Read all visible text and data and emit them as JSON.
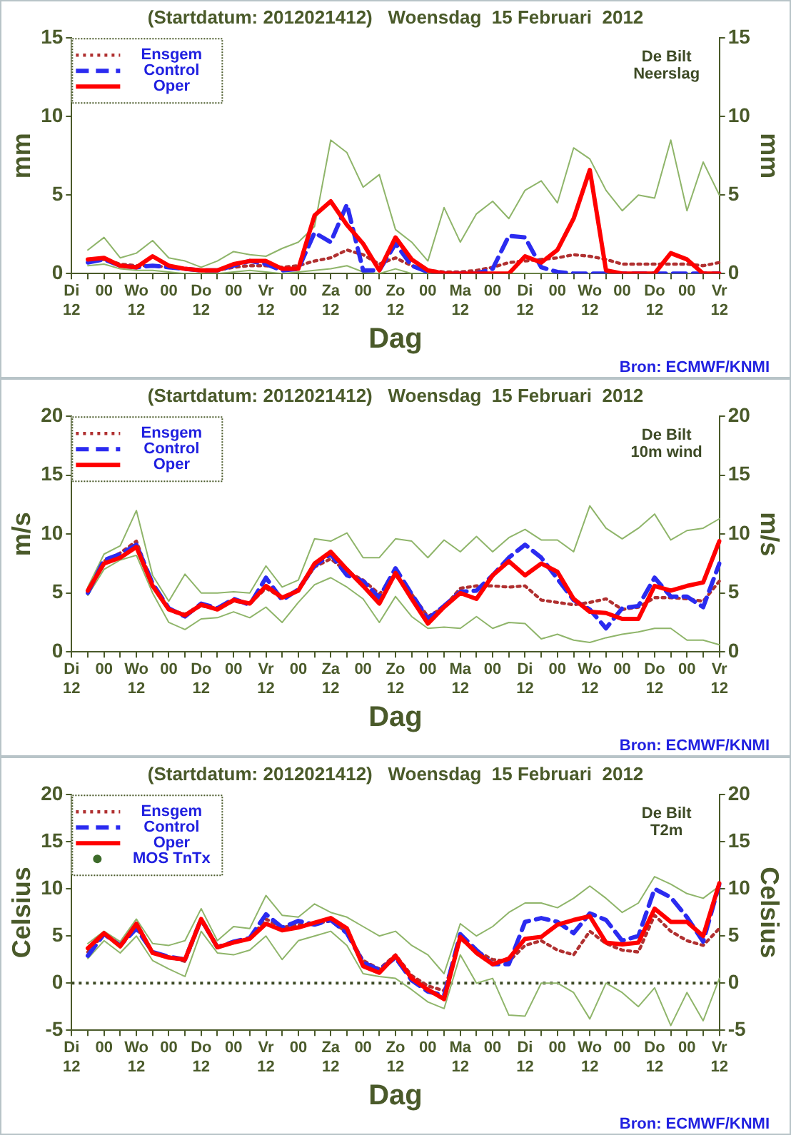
{
  "chart_data": [
    {
      "type": "line",
      "title": "(Startdatum: 2012021412)   Woensdag  15 Februari  2012",
      "xlabel": "Dag",
      "ylabel": "mm",
      "y2label": "mm",
      "legend": "top left",
      "grid": false,
      "marker": "none",
      "annotations": [
        "De Bilt",
        "Neerslag",
        "Bron: ECMWF/KNMI"
      ],
      "categories": [
        "Di\n12",
        null,
        "00",
        null,
        "Wo\n12",
        null,
        "00",
        null,
        "Do\n12",
        null,
        "00",
        null,
        "Vr\n12",
        null,
        "00",
        null,
        "Za\n12",
        null,
        "00",
        null,
        "Zo\n12",
        null,
        "00",
        null,
        "Ma\n12",
        null,
        "00",
        null,
        "Di\n12",
        null,
        "00",
        null,
        "Wo\n12",
        null,
        "00",
        null,
        "Do\n12",
        null,
        "00",
        null,
        "Vr\n12"
      ],
      "ylim": [
        0,
        15
      ],
      "yticks": [
        0,
        5,
        10,
        15
      ],
      "y2lim": [
        0,
        15
      ],
      "y2ticks": [
        0,
        5,
        10,
        15
      ],
      "series": [
        {
          "color": "#8fb56a",
          "line_style": "solid",
          "values": [
            null,
            1.5,
            2.3,
            1.0,
            1.3,
            2.1,
            1.0,
            0.8,
            0.4,
            0.8,
            1.4,
            1.2,
            1.1,
            1.6,
            2.0,
            3.0,
            8.5,
            7.7,
            5.5,
            6.3,
            2.8,
            2.0,
            0.8,
            4.2,
            2.0,
            3.8,
            4.6,
            3.5,
            5.3,
            5.9,
            4.5,
            8.0,
            7.3,
            5.3,
            4.0,
            5.0,
            4.8,
            8.5,
            4.0,
            7.1,
            5.0
          ]
        },
        {
          "color": "#8fb56a",
          "line_style": "solid",
          "values": [
            null,
            0.5,
            0.6,
            0.3,
            0.2,
            0.2,
            0.1,
            0,
            0,
            0,
            0.1,
            0.2,
            0.1,
            0,
            0.1,
            0.2,
            0.3,
            0.5,
            0.1,
            0,
            0.3,
            0,
            0,
            0,
            0,
            0,
            0,
            0,
            0,
            0,
            0,
            0,
            0,
            0,
            0,
            0,
            0,
            0,
            0,
            0,
            0
          ]
        },
        {
          "name": "Ensgem",
          "color": "#b03030",
          "line_style": "dotted",
          "values": [
            null,
            0.8,
            0.9,
            0.6,
            0.5,
            0.5,
            0.4,
            0.3,
            0.2,
            0.2,
            0.4,
            0.5,
            0.5,
            0.4,
            0.5,
            0.8,
            1.0,
            1.5,
            1.2,
            0.6,
            1.0,
            0.5,
            0.2,
            0.1,
            0.1,
            0.2,
            0.4,
            0.7,
            0.8,
            0.9,
            1.0,
            1.2,
            1.1,
            0.9,
            0.6,
            0.6,
            0.6,
            0.6,
            0.6,
            0.5,
            0.7
          ]
        },
        {
          "name": "Control",
          "color": "#2b2bf0",
          "line_style": "dashed",
          "values": [
            null,
            0.7,
            0.9,
            0.5,
            0.4,
            0.5,
            0.4,
            0.3,
            0.2,
            0.2,
            0.5,
            0.8,
            0.6,
            0.2,
            0.3,
            2.6,
            2.0,
            4.4,
            0.2,
            0.2,
            1.9,
            0.5,
            0.1,
            0,
            0,
            0,
            0.3,
            2.4,
            2.3,
            0.4,
            0.1,
            0,
            0,
            0,
            0,
            0,
            0,
            0,
            0,
            0,
            0
          ]
        },
        {
          "name": "Oper",
          "color": "#ff0000",
          "line_style": "solid",
          "values": [
            null,
            0.9,
            1.0,
            0.5,
            0.4,
            1.1,
            0.5,
            0.3,
            0.2,
            0.2,
            0.6,
            0.8,
            0.8,
            0.3,
            0.3,
            3.7,
            4.6,
            3.1,
            1.9,
            0.2,
            2.3,
            0.9,
            0.2,
            0,
            0,
            0,
            0,
            0,
            1.1,
            0.7,
            1.5,
            3.5,
            6.6,
            0.2,
            0,
            0,
            0,
            1.3,
            0.9,
            0,
            0
          ]
        }
      ]
    },
    {
      "type": "line",
      "title": "(Startdatum: 2012021412)   Woensdag  15 Februari  2012",
      "xlabel": "Dag",
      "ylabel": "m/s",
      "y2label": "m/s",
      "legend": "top left",
      "grid": false,
      "marker": "none",
      "annotations": [
        "De Bilt",
        "10m wind",
        "Bron: ECMWF/KNMI"
      ],
      "categories": [
        "Di\n12",
        null,
        "00",
        null,
        "Wo\n12",
        null,
        "00",
        null,
        "Do\n12",
        null,
        "00",
        null,
        "Vr\n12",
        null,
        "00",
        null,
        "Za\n12",
        null,
        "00",
        null,
        "Zo\n12",
        null,
        "00",
        null,
        "Ma\n12",
        null,
        "00",
        null,
        "Di\n12",
        null,
        "00",
        null,
        "Wo\n12",
        null,
        "00",
        null,
        "Do\n12",
        null,
        "00",
        null,
        "Vr\n12"
      ],
      "ylim": [
        0,
        20
      ],
      "yticks": [
        0,
        5,
        10,
        15,
        20
      ],
      "y2lim": [
        0,
        20
      ],
      "y2ticks": [
        0,
        5,
        10,
        15,
        20
      ],
      "series": [
        {
          "color": "#8fb56a",
          "line_style": "solid",
          "values": [
            null,
            5.5,
            8.3,
            9.0,
            12.0,
            6.5,
            4.3,
            6.6,
            5.0,
            5.0,
            5.1,
            5.0,
            7.3,
            5.5,
            6.1,
            9.6,
            9.4,
            10.1,
            8.0,
            8.0,
            9.6,
            9.4,
            8.0,
            9.5,
            8.5,
            9.8,
            8.5,
            9.7,
            10.4,
            9.5,
            9.5,
            8.5,
            12.4,
            10.5,
            9.6,
            10.5,
            11.7,
            9.5,
            10.3,
            10.5,
            11.3
          ]
        },
        {
          "color": "#8fb56a",
          "line_style": "solid",
          "values": [
            null,
            4.8,
            7.0,
            7.8,
            8.2,
            5.0,
            2.5,
            1.9,
            2.8,
            2.9,
            3.4,
            2.9,
            3.8,
            2.5,
            4.2,
            5.7,
            6.3,
            5.5,
            4.5,
            2.5,
            4.7,
            3.0,
            2.0,
            2.1,
            2.0,
            3.0,
            2.0,
            2.5,
            2.4,
            1.1,
            1.5,
            1.0,
            0.8,
            1.2,
            1.5,
            1.7,
            2.0,
            2.0,
            1.0,
            1.0,
            0.6
          ]
        },
        {
          "name": "Ensgem",
          "color": "#b03030",
          "line_style": "dotted",
          "values": [
            null,
            5.1,
            7.7,
            8.4,
            9.4,
            5.7,
            3.6,
            3.2,
            3.9,
            3.7,
            4.3,
            4.1,
            5.4,
            4.6,
            5.2,
            7.2,
            7.9,
            6.8,
            6.1,
            4.9,
            6.5,
            4.9,
            3.0,
            3.8,
            5.4,
            5.6,
            5.6,
            5.5,
            5.6,
            4.4,
            4.2,
            4.0,
            4.2,
            4.5,
            3.6,
            3.8,
            4.6,
            4.6,
            4.5,
            4.3,
            6.0
          ]
        },
        {
          "name": "Control",
          "color": "#2b2bf0",
          "line_style": "dashed",
          "values": [
            null,
            5.0,
            7.8,
            8.3,
            9.1,
            5.8,
            3.7,
            3.0,
            4.1,
            3.7,
            4.5,
            4.0,
            6.3,
            4.4,
            5.3,
            7.3,
            8.3,
            6.5,
            6.0,
            4.6,
            7.1,
            4.9,
            2.8,
            3.9,
            5.1,
            5.2,
            6.5,
            8.0,
            9.1,
            8.0,
            6.2,
            4.4,
            3.6,
            2.0,
            3.7,
            3.9,
            6.3,
            4.7,
            4.7,
            3.8,
            7.5
          ]
        },
        {
          "name": "Oper",
          "color": "#ff0000",
          "line_style": "solid",
          "values": [
            null,
            5.2,
            7.5,
            8.0,
            8.9,
            5.6,
            3.6,
            3.1,
            4.0,
            3.6,
            4.4,
            4.1,
            5.6,
            4.6,
            5.2,
            7.5,
            8.5,
            7.0,
            5.6,
            4.1,
            6.7,
            4.5,
            2.4,
            3.8,
            5.0,
            4.5,
            6.5,
            7.7,
            6.5,
            7.5,
            6.8,
            4.5,
            3.4,
            3.3,
            2.8,
            2.8,
            5.6,
            5.2,
            5.6,
            5.9,
            9.4
          ]
        }
      ]
    },
    {
      "type": "line",
      "title": "(Startdatum: 2012021412)   Woensdag  15 Februari  2012",
      "xlabel": "Dag",
      "ylabel": "Celsius",
      "y2label": "Celsius",
      "legend": "top left",
      "grid": false,
      "marker": "none",
      "annotations": [
        "De Bilt",
        "T2m",
        "Bron: ECMWF/KNMI"
      ],
      "ref_lines": [
        {
          "axis": "y",
          "value": 0,
          "color": "#3d4a25",
          "line_style": "dotted"
        }
      ],
      "categories": [
        "Di\n12",
        null,
        "00",
        null,
        "Wo\n12",
        null,
        "00",
        null,
        "Do\n12",
        null,
        "00",
        null,
        "Vr\n12",
        null,
        "00",
        null,
        "Za\n12",
        null,
        "00",
        null,
        "Zo\n12",
        null,
        "00",
        null,
        "Ma\n12",
        null,
        "00",
        null,
        "Di\n12",
        null,
        "00",
        null,
        "Wo\n12",
        null,
        "00",
        null,
        "Do\n12",
        null,
        "00",
        null,
        "Vr\n12"
      ],
      "ylim": [
        -5,
        20
      ],
      "yticks": [
        -5,
        0,
        5,
        10,
        15,
        20
      ],
      "y2lim": [
        -5,
        20
      ],
      "y2ticks": [
        -5,
        0,
        5,
        10,
        15,
        20
      ],
      "series": [
        {
          "color": "#8fb56a",
          "line_style": "solid",
          "values": [
            null,
            4.2,
            5.5,
            4.4,
            6.8,
            4.2,
            4.0,
            4.5,
            7.9,
            4.5,
            6.0,
            5.8,
            9.3,
            7.2,
            7.0,
            8.4,
            7.5,
            7.0,
            6.0,
            5.0,
            5.5,
            4.0,
            3.0,
            1.0,
            6.3,
            5.0,
            6.0,
            7.5,
            8.5,
            8.5,
            8.0,
            9.0,
            10.3,
            9.0,
            7.5,
            8.5,
            11.3,
            10.5,
            9.5,
            9.0,
            10.3
          ]
        },
        {
          "color": "#8fb56a",
          "line_style": "solid",
          "values": [
            null,
            2.6,
            4.5,
            3.2,
            5.0,
            2.4,
            1.5,
            0.7,
            5.5,
            3.2,
            3.0,
            3.5,
            5.0,
            2.5,
            4.5,
            5.0,
            5.5,
            4.0,
            1.0,
            0.7,
            0.5,
            -0.7,
            -2.0,
            -2.7,
            3.0,
            0.0,
            0.5,
            -3.4,
            -3.5,
            0.0,
            0.0,
            -1.0,
            -3.8,
            0.0,
            -1.0,
            -2.5,
            -0.5,
            -4.5,
            -1.0,
            -4.0,
            0.5
          ]
        },
        {
          "name": "Ensgem",
          "color": "#b03030",
          "line_style": "dotted",
          "values": [
            null,
            3.3,
            5.2,
            4.0,
            5.9,
            3.2,
            2.8,
            2.3,
            6.6,
            3.9,
            4.3,
            4.7,
            6.8,
            5.9,
            6.2,
            6.3,
            6.6,
            5.4,
            2.4,
            1.5,
            3.0,
            0.8,
            -0.3,
            -0.8,
            4.7,
            3.4,
            2.5,
            2.3,
            4.0,
            4.5,
            3.5,
            3.0,
            5.5,
            4.2,
            3.5,
            3.3,
            7.2,
            5.5,
            4.5,
            4.0,
            5.8
          ]
        },
        {
          "name": "Control",
          "color": "#2b2bf0",
          "line_style": "dashed",
          "values": [
            null,
            2.9,
            5.2,
            4.0,
            5.8,
            3.3,
            2.8,
            2.5,
            6.8,
            3.8,
            4.4,
            4.8,
            7.3,
            5.9,
            6.6,
            6.2,
            6.7,
            5.3,
            2.2,
            1.4,
            2.7,
            0.3,
            -0.9,
            -1.3,
            5.2,
            3.5,
            2.0,
            2.0,
            6.5,
            6.9,
            6.5,
            5.3,
            7.4,
            6.7,
            4.5,
            5.0,
            10.0,
            9.1,
            7.0,
            4.4,
            10.5
          ]
        },
        {
          "name": "Oper",
          "color": "#ff0000",
          "line_style": "solid",
          "values": [
            null,
            3.7,
            5.3,
            3.9,
            6.3,
            3.2,
            2.7,
            2.5,
            6.8,
            3.8,
            4.3,
            4.7,
            6.3,
            5.6,
            5.9,
            6.4,
            6.9,
            5.8,
            1.8,
            1.1,
            2.9,
            0.5,
            -0.7,
            -1.7,
            4.9,
            3.2,
            2.0,
            2.6,
            4.7,
            4.9,
            6.2,
            6.7,
            7.1,
            4.3,
            4.1,
            4.3,
            7.9,
            6.5,
            6.5,
            5.0,
            10.6
          ]
        },
        {
          "name": "MOS TnTx",
          "type": "scatter",
          "color": "#3d6b2a",
          "marker": "circle",
          "values": [
            null,
            null,
            null,
            null,
            null,
            null,
            null,
            null,
            null,
            null,
            null,
            null,
            null,
            null,
            null,
            null,
            null,
            null,
            null,
            null,
            null,
            null,
            null,
            null,
            null,
            null,
            null,
            null,
            null,
            null,
            null,
            null,
            null,
            null,
            null,
            null,
            null,
            null,
            null,
            null,
            null
          ]
        }
      ]
    }
  ]
}
